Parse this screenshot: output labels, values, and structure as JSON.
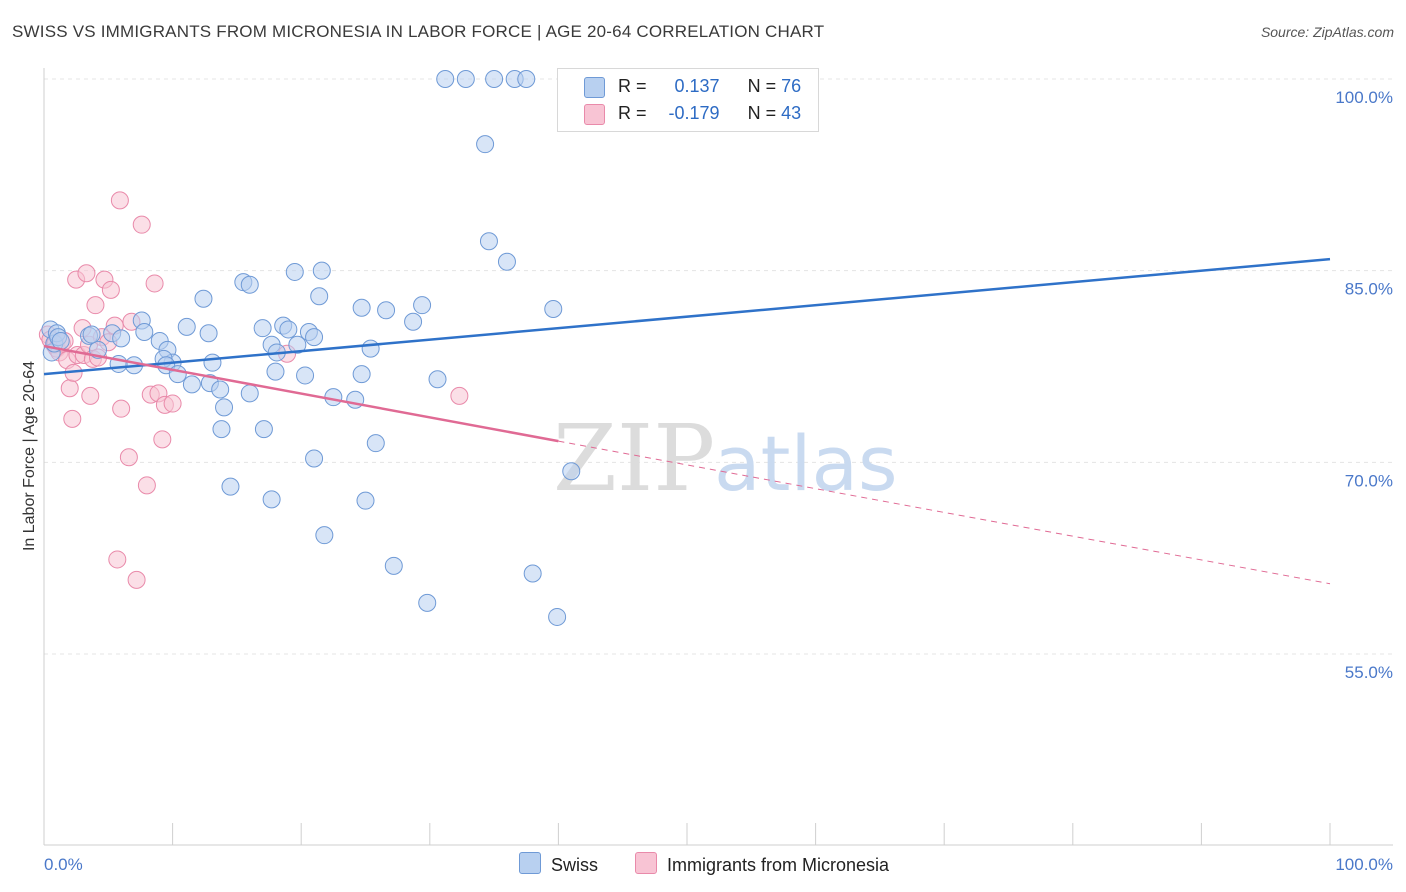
{
  "title": "SWISS VS IMMIGRANTS FROM MICRONESIA IN LABOR FORCE | AGE 20-64 CORRELATION CHART",
  "source": "Source: ZipAtlas.com",
  "watermark": {
    "zip": "ZIP",
    "atlas": "atlas"
  },
  "legend": {
    "r_label": "R =",
    "n_label": "N =",
    "swiss": {
      "r": "0.137",
      "n": "76"
    },
    "micronesia": {
      "r": "-0.179",
      "n": "43"
    }
  },
  "bottom_legend": {
    "swiss": "Swiss",
    "micronesia": "Immigrants from Micronesia"
  },
  "colors": {
    "swiss_fill": "#b8d0f0",
    "swiss_stroke": "#6f9ad6",
    "swiss_line": "#2f72c9",
    "micro_fill": "#f8c4d4",
    "micro_stroke": "#e98aaa",
    "micro_line": "#e06a94",
    "tick_text": "#4a78c9",
    "grid": "#e4e4e4"
  },
  "chart_data": {
    "type": "scatter",
    "title": "SWISS VS IMMIGRANTS FROM MICRONESIA IN LABOR FORCE | AGE 20-64 CORRELATION CHART",
    "xlabel": "",
    "ylabel": "In Labor Force | Age 20-64",
    "xlim": [
      0,
      100
    ],
    "ylim": [
      40,
      102
    ],
    "x_tick_labels": [
      "0.0%",
      "100.0%"
    ],
    "y_ticks": [
      55,
      70,
      85,
      100
    ],
    "y_tick_labels": [
      "55.0%",
      "70.0%",
      "85.0%",
      "100.0%"
    ],
    "grid": true,
    "series": [
      {
        "name": "Swiss",
        "r": 0.137,
        "n": 76,
        "trend": {
          "x": [
            0,
            100
          ],
          "y": [
            76.9,
            85.9
          ],
          "style": "solid"
        },
        "points": [
          [
            0.5,
            80.4
          ],
          [
            0.6,
            78.6
          ],
          [
            0.8,
            79.3
          ],
          [
            1.0,
            80.1
          ],
          [
            1.1,
            79.8
          ],
          [
            1.3,
            79.5
          ],
          [
            3.5,
            79.9
          ],
          [
            4.2,
            78.8
          ],
          [
            3.7,
            80.0
          ],
          [
            5.3,
            80.1
          ],
          [
            6.0,
            79.7
          ],
          [
            7.0,
            77.6
          ],
          [
            5.8,
            77.7
          ],
          [
            7.6,
            81.1
          ],
          [
            7.8,
            80.2
          ],
          [
            9.0,
            79.5
          ],
          [
            9.6,
            78.8
          ],
          [
            10.0,
            77.8
          ],
          [
            9.3,
            78.1
          ],
          [
            9.5,
            77.6
          ],
          [
            11.1,
            80.6
          ],
          [
            10.4,
            76.9
          ],
          [
            11.5,
            76.1
          ],
          [
            12.4,
            82.8
          ],
          [
            12.8,
            80.1
          ],
          [
            12.9,
            76.2
          ],
          [
            13.1,
            77.8
          ],
          [
            13.7,
            75.7
          ],
          [
            14.0,
            74.3
          ],
          [
            13.8,
            72.6
          ],
          [
            15.5,
            84.1
          ],
          [
            14.5,
            68.1
          ],
          [
            16.0,
            83.9
          ],
          [
            16.0,
            75.4
          ],
          [
            17.0,
            80.5
          ],
          [
            17.7,
            79.2
          ],
          [
            17.7,
            67.1
          ],
          [
            18.1,
            78.6
          ],
          [
            17.1,
            72.6
          ],
          [
            18.6,
            80.7
          ],
          [
            19.0,
            80.4
          ],
          [
            19.7,
            79.2
          ],
          [
            18.0,
            77.1
          ],
          [
            19.5,
            84.9
          ],
          [
            20.3,
            76.8
          ],
          [
            20.6,
            80.2
          ],
          [
            21.0,
            79.8
          ],
          [
            21.4,
            83.0
          ],
          [
            21.0,
            70.3
          ],
          [
            21.6,
            85.0
          ],
          [
            22.5,
            75.1
          ],
          [
            21.8,
            64.3
          ],
          [
            24.7,
            76.9
          ],
          [
            24.7,
            82.1
          ],
          [
            24.2,
            74.9
          ],
          [
            25.4,
            78.9
          ],
          [
            25.0,
            67.0
          ],
          [
            26.6,
            81.9
          ],
          [
            25.8,
            71.5
          ],
          [
            28.7,
            81.0
          ],
          [
            29.4,
            82.3
          ],
          [
            30.6,
            76.5
          ],
          [
            27.2,
            61.9
          ],
          [
            29.8,
            59.0
          ],
          [
            31.2,
            100.0
          ],
          [
            32.8,
            100.0
          ],
          [
            34.6,
            87.3
          ],
          [
            35.0,
            100.0
          ],
          [
            36.6,
            100.0
          ],
          [
            34.3,
            94.9
          ],
          [
            36.0,
            85.7
          ],
          [
            37.5,
            100.0
          ],
          [
            38.0,
            61.3
          ],
          [
            39.6,
            82.0
          ],
          [
            41.0,
            69.3
          ],
          [
            39.9,
            57.9
          ]
        ]
      },
      {
        "name": "Immigrants from Micronesia",
        "r": -0.179,
        "n": 43,
        "trend": {
          "x": [
            0,
            100
          ],
          "y": [
            79.1,
            60.5
          ],
          "solid_until_x": 40
        },
        "points": [
          [
            0.3,
            80.0
          ],
          [
            0.5,
            79.6
          ],
          [
            0.8,
            79.2
          ],
          [
            0.9,
            79.3
          ],
          [
            1.0,
            78.9
          ],
          [
            1.2,
            78.6
          ],
          [
            1.4,
            79.3
          ],
          [
            1.6,
            79.5
          ],
          [
            1.8,
            78.0
          ],
          [
            2.0,
            75.8
          ],
          [
            2.2,
            73.4
          ],
          [
            2.3,
            77.0
          ],
          [
            2.5,
            84.3
          ],
          [
            2.6,
            78.4
          ],
          [
            3.0,
            80.5
          ],
          [
            3.1,
            78.4
          ],
          [
            3.3,
            84.8
          ],
          [
            3.5,
            79.2
          ],
          [
            3.6,
            75.2
          ],
          [
            3.8,
            78.1
          ],
          [
            4.0,
            82.3
          ],
          [
            4.2,
            78.2
          ],
          [
            4.5,
            79.8
          ],
          [
            4.7,
            84.3
          ],
          [
            5.0,
            79.4
          ],
          [
            5.2,
            83.5
          ],
          [
            5.5,
            80.7
          ],
          [
            5.7,
            62.4
          ],
          [
            5.9,
            90.5
          ],
          [
            6.0,
            74.2
          ],
          [
            6.6,
            70.4
          ],
          [
            6.8,
            81.0
          ],
          [
            7.2,
            60.8
          ],
          [
            7.6,
            88.6
          ],
          [
            8.0,
            68.2
          ],
          [
            8.3,
            75.3
          ],
          [
            8.6,
            84.0
          ],
          [
            8.9,
            75.4
          ],
          [
            9.2,
            71.8
          ],
          [
            9.4,
            74.5
          ],
          [
            10.0,
            74.6
          ],
          [
            18.9,
            78.5
          ],
          [
            32.3,
            75.2
          ]
        ]
      }
    ]
  }
}
